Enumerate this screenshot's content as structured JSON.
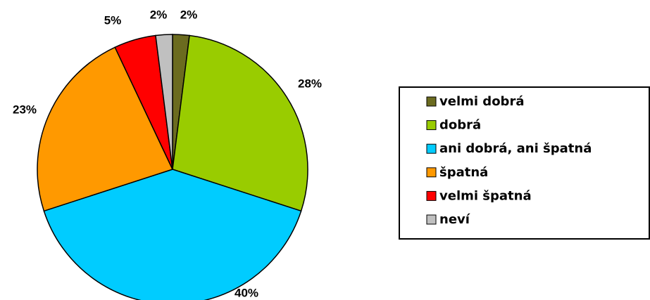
{
  "chart_data": {
    "type": "pie",
    "categories": [
      "velmi dobrá",
      "dobrá",
      "ani dobrá, ani špatná",
      "špatná",
      "velmi špatná",
      "neví"
    ],
    "values": [
      2,
      28,
      40,
      23,
      5,
      2
    ],
    "value_labels": [
      "2%",
      "28%",
      "40%",
      "23%",
      "5%",
      "2%"
    ],
    "colors": [
      "#6b6b1f",
      "#99cc00",
      "#00ccff",
      "#ff9900",
      "#ff0000",
      "#c0c0c0"
    ]
  }
}
